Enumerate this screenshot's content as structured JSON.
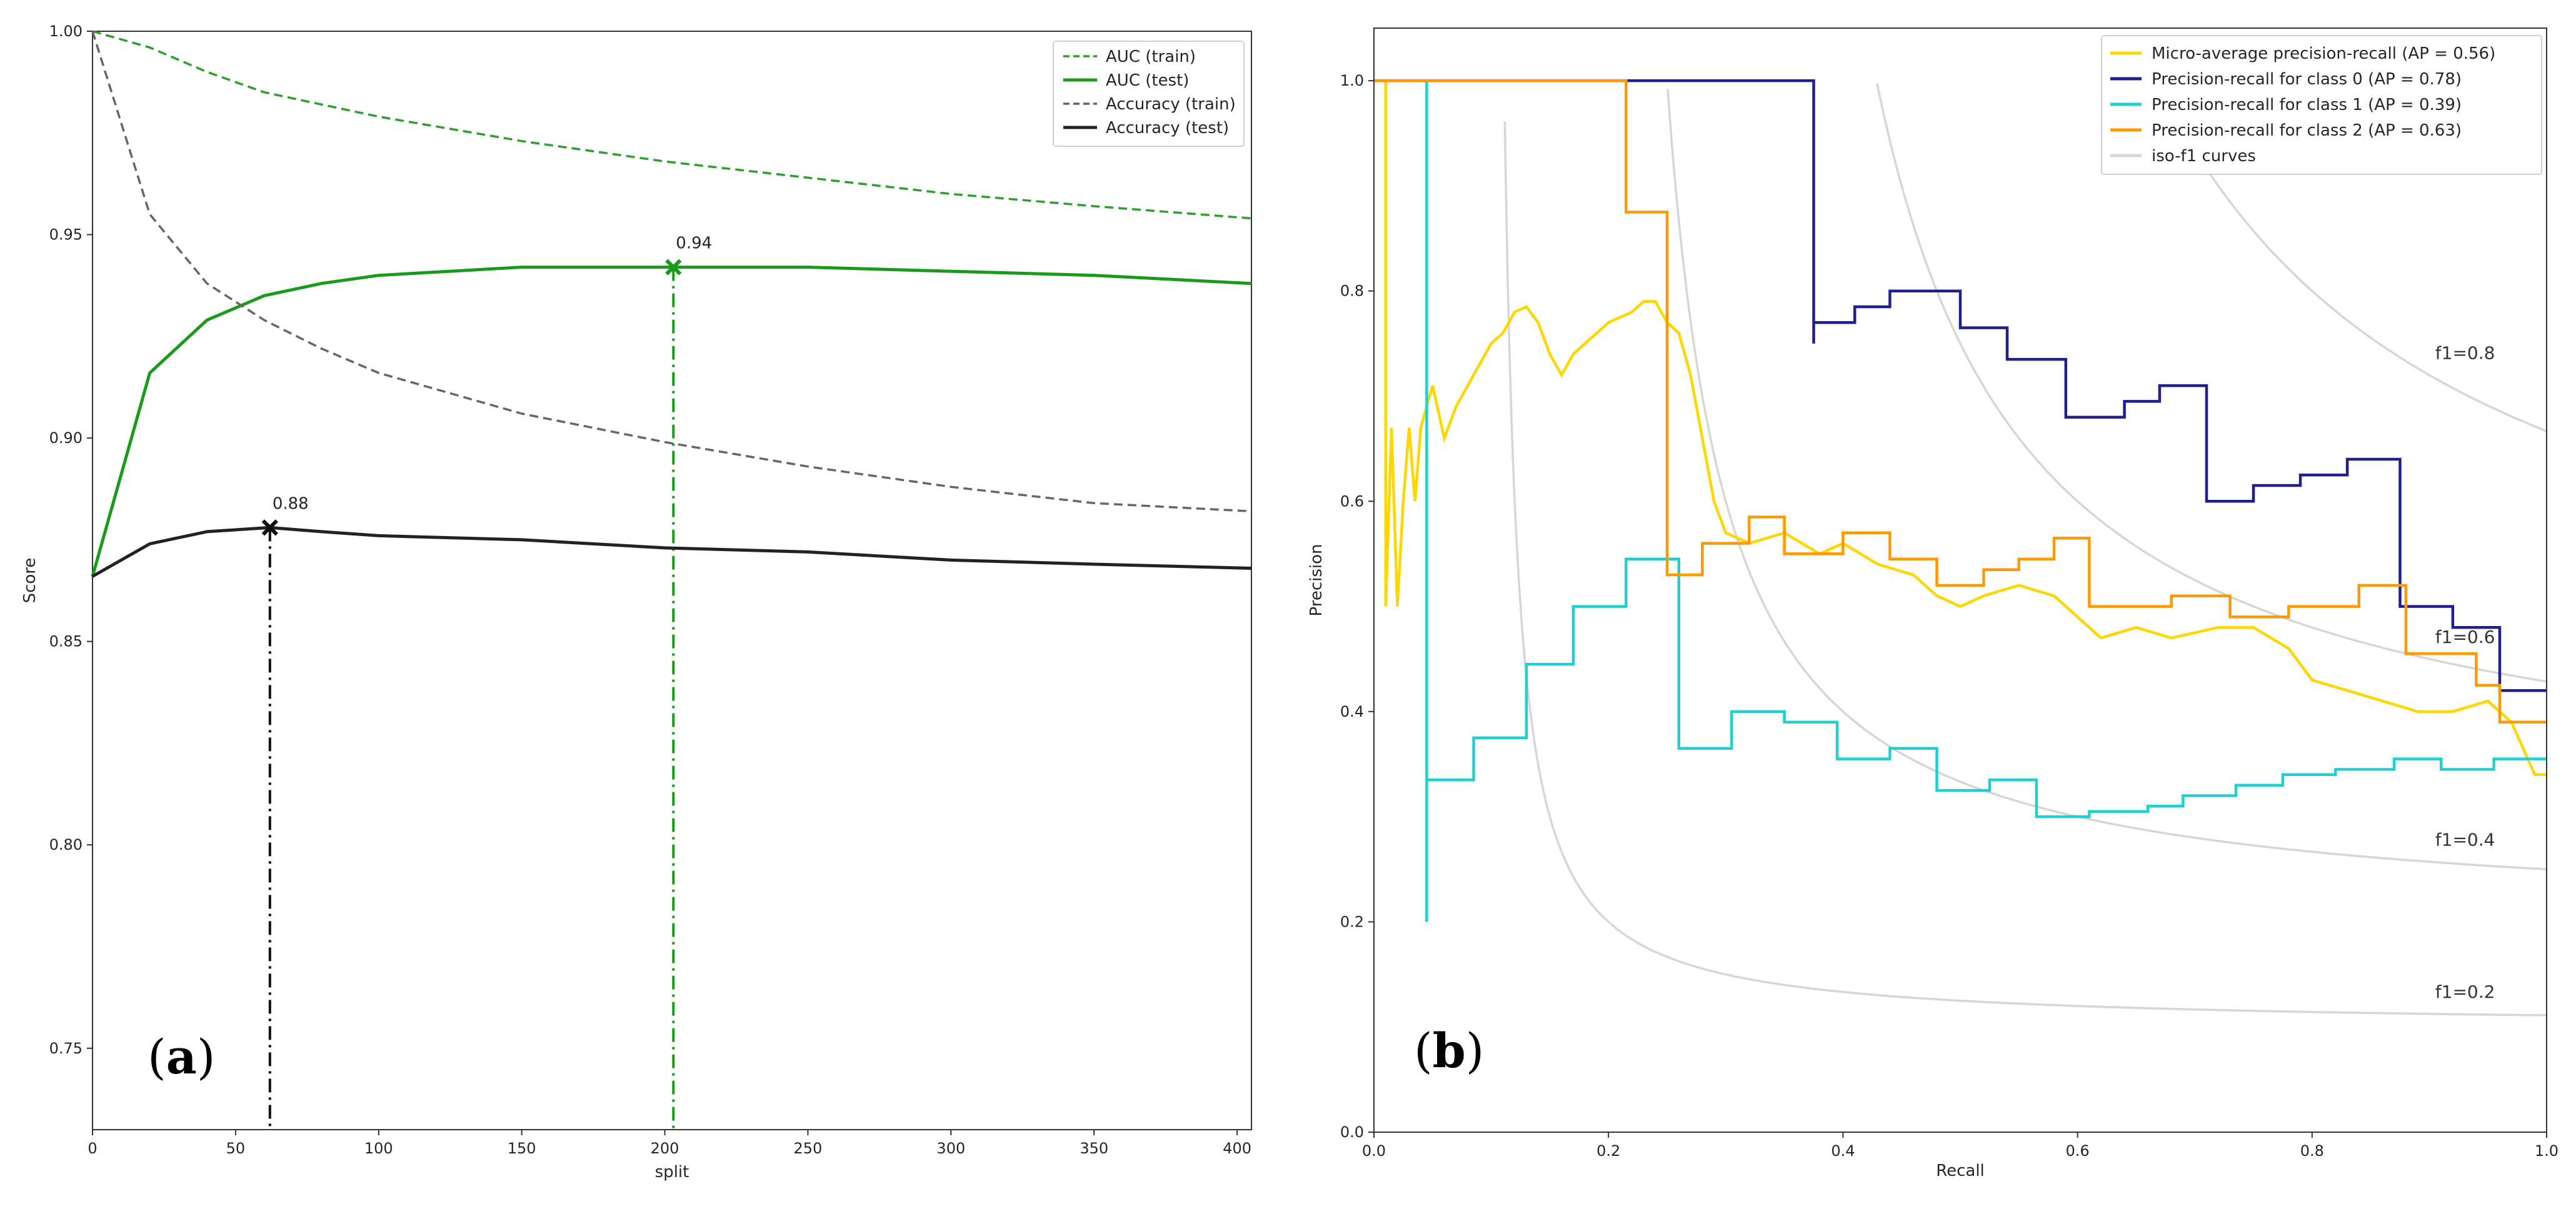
{
  "chart_data": [
    {
      "id": "a",
      "type": "line",
      "panel_label": "a",
      "xlabel": "split",
      "ylabel": "Score",
      "xlim": [
        0,
        405
      ],
      "ylim": [
        0.73,
        1.0
      ],
      "xticks": [
        0,
        50,
        100,
        150,
        200,
        250,
        300,
        350,
        400
      ],
      "yticks": [
        0.75,
        0.8,
        0.85,
        0.9,
        0.95,
        1.0
      ],
      "ytick_labels": [
        "0.75",
        "0.80",
        "0.85",
        "0.90",
        "0.95",
        "1.00"
      ],
      "legend_position": "upper right",
      "series": [
        {
          "name": "AUC (train)",
          "color": "#2ca02c",
          "style": "dashed",
          "points": [
            [
              0,
              1.0
            ],
            [
              20,
              0.996
            ],
            [
              40,
              0.99
            ],
            [
              60,
              0.985
            ],
            [
              80,
              0.982
            ],
            [
              100,
              0.979
            ],
            [
              150,
              0.973
            ],
            [
              200,
              0.968
            ],
            [
              250,
              0.964
            ],
            [
              300,
              0.96
            ],
            [
              350,
              0.957
            ],
            [
              405,
              0.954
            ]
          ]
        },
        {
          "name": "AUC (test)",
          "color": "#1a9a1a",
          "style": "solid",
          "points": [
            [
              0,
              0.866
            ],
            [
              20,
              0.916
            ],
            [
              40,
              0.929
            ],
            [
              50,
              0.932
            ],
            [
              60,
              0.935
            ],
            [
              80,
              0.938
            ],
            [
              100,
              0.94
            ],
            [
              150,
              0.942
            ],
            [
              203,
              0.942
            ],
            [
              250,
              0.942
            ],
            [
              300,
              0.941
            ],
            [
              350,
              0.94
            ],
            [
              405,
              0.938
            ]
          ]
        },
        {
          "name": "Accuracy (train)",
          "color": "#666666",
          "style": "dashed",
          "points": [
            [
              0,
              1.0
            ],
            [
              20,
              0.955
            ],
            [
              40,
              0.938
            ],
            [
              60,
              0.929
            ],
            [
              80,
              0.922
            ],
            [
              100,
              0.916
            ],
            [
              150,
              0.906
            ],
            [
              200,
              0.899
            ],
            [
              250,
              0.893
            ],
            [
              300,
              0.888
            ],
            [
              350,
              0.884
            ],
            [
              405,
              0.882
            ]
          ]
        },
        {
          "name": "Accuracy (test)",
          "color": "#222222",
          "style": "solid",
          "points": [
            [
              0,
              0.866
            ],
            [
              20,
              0.874
            ],
            [
              40,
              0.877
            ],
            [
              62,
              0.878
            ],
            [
              80,
              0.877
            ],
            [
              100,
              0.876
            ],
            [
              150,
              0.875
            ],
            [
              200,
              0.873
            ],
            [
              250,
              0.872
            ],
            [
              300,
              0.87
            ],
            [
              350,
              0.869
            ],
            [
              405,
              0.868
            ]
          ]
        }
      ],
      "markers": [
        {
          "x": 203,
          "y": 0.942,
          "label": "0.94",
          "color": "#1a9a1a"
        },
        {
          "x": 62,
          "y": 0.878,
          "label": "0.88",
          "color": "#111111"
        }
      ]
    },
    {
      "id": "b",
      "type": "line",
      "panel_label": "b",
      "xlabel": "Recall",
      "ylabel": "Precision",
      "xlim": [
        0.0,
        1.0
      ],
      "ylim": [
        0.0,
        1.05
      ],
      "xticks": [
        0.0,
        0.2,
        0.4,
        0.6,
        0.8,
        1.0
      ],
      "xtick_labels": [
        "0.0",
        "0.2",
        "0.4",
        "0.6",
        "0.8",
        "1.0"
      ],
      "yticks": [
        0.0,
        0.2,
        0.4,
        0.6,
        0.8,
        1.0
      ],
      "ytick_labels": [
        "0.0",
        "0.2",
        "0.4",
        "0.6",
        "0.8",
        "1.0"
      ],
      "legend_position": "upper right",
      "iso_f1": [
        {
          "f1": 0.2,
          "label": "f1=0.2"
        },
        {
          "f1": 0.4,
          "label": "f1=0.4"
        },
        {
          "f1": 0.6,
          "label": "f1=0.6"
        },
        {
          "f1": 0.8,
          "label": "f1=0.8"
        }
      ],
      "series": [
        {
          "name": "Micro-average precision-recall (AP = 0.56)",
          "color": "#ffd700",
          "points": [
            [
              0.01,
              1.0
            ],
            [
              0.01,
              0.5
            ],
            [
              0.015,
              0.67
            ],
            [
              0.02,
              0.5
            ],
            [
              0.025,
              0.6
            ],
            [
              0.03,
              0.67
            ],
            [
              0.035,
              0.6
            ],
            [
              0.04,
              0.67
            ],
            [
              0.05,
              0.71
            ],
            [
              0.06,
              0.66
            ],
            [
              0.07,
              0.69
            ],
            [
              0.08,
              0.71
            ],
            [
              0.09,
              0.73
            ],
            [
              0.1,
              0.75
            ],
            [
              0.11,
              0.76
            ],
            [
              0.12,
              0.78
            ],
            [
              0.13,
              0.785
            ],
            [
              0.14,
              0.77
            ],
            [
              0.15,
              0.74
            ],
            [
              0.16,
              0.72
            ],
            [
              0.17,
              0.74
            ],
            [
              0.18,
              0.75
            ],
            [
              0.19,
              0.76
            ],
            [
              0.2,
              0.77
            ],
            [
              0.21,
              0.775
            ],
            [
              0.22,
              0.78
            ],
            [
              0.23,
              0.79
            ],
            [
              0.24,
              0.79
            ],
            [
              0.25,
              0.77
            ],
            [
              0.26,
              0.76
            ],
            [
              0.27,
              0.72
            ],
            [
              0.28,
              0.66
            ],
            [
              0.29,
              0.6
            ],
            [
              0.3,
              0.57
            ],
            [
              0.32,
              0.56
            ],
            [
              0.35,
              0.57
            ],
            [
              0.38,
              0.55
            ],
            [
              0.4,
              0.56
            ],
            [
              0.43,
              0.54
            ],
            [
              0.46,
              0.53
            ],
            [
              0.48,
              0.51
            ],
            [
              0.5,
              0.5
            ],
            [
              0.52,
              0.51
            ],
            [
              0.55,
              0.52
            ],
            [
              0.58,
              0.51
            ],
            [
              0.6,
              0.49
            ],
            [
              0.62,
              0.47
            ],
            [
              0.65,
              0.48
            ],
            [
              0.68,
              0.47
            ],
            [
              0.72,
              0.48
            ],
            [
              0.75,
              0.48
            ],
            [
              0.78,
              0.46
            ],
            [
              0.8,
              0.43
            ],
            [
              0.83,
              0.42
            ],
            [
              0.86,
              0.41
            ],
            [
              0.89,
              0.4
            ],
            [
              0.92,
              0.4
            ],
            [
              0.95,
              0.41
            ],
            [
              0.97,
              0.39
            ],
            [
              0.99,
              0.34
            ],
            [
              1.0,
              0.34
            ]
          ]
        },
        {
          "name": "Precision-recall for class 0 (AP = 0.78)",
          "color": "#1f1f8f",
          "points": [
            [
              0.0,
              1.0
            ],
            [
              0.375,
              1.0
            ],
            [
              0.375,
              0.75
            ],
            [
              0.375,
              0.77
            ],
            [
              0.41,
              0.77
            ],
            [
              0.41,
              0.785
            ],
            [
              0.44,
              0.785
            ],
            [
              0.44,
              0.8
            ],
            [
              0.5,
              0.8
            ],
            [
              0.5,
              0.765
            ],
            [
              0.54,
              0.765
            ],
            [
              0.54,
              0.735
            ],
            [
              0.59,
              0.735
            ],
            [
              0.59,
              0.68
            ],
            [
              0.64,
              0.68
            ],
            [
              0.64,
              0.695
            ],
            [
              0.67,
              0.695
            ],
            [
              0.67,
              0.71
            ],
            [
              0.71,
              0.71
            ],
            [
              0.71,
              0.6
            ],
            [
              0.75,
              0.6
            ],
            [
              0.75,
              0.615
            ],
            [
              0.79,
              0.615
            ],
            [
              0.79,
              0.625
            ],
            [
              0.83,
              0.625
            ],
            [
              0.83,
              0.64
            ],
            [
              0.875,
              0.64
            ],
            [
              0.875,
              0.5
            ],
            [
              0.92,
              0.5
            ],
            [
              0.92,
              0.48
            ],
            [
              0.96,
              0.48
            ],
            [
              0.96,
              0.42
            ],
            [
              1.0,
              0.42
            ]
          ]
        },
        {
          "name": "Precision-recall for class 1 (AP = 0.39)",
          "color": "#20d0d0",
          "points": [
            [
              0.045,
              1.0
            ],
            [
              0.045,
              0.2
            ],
            [
              0.045,
              0.335
            ],
            [
              0.085,
              0.335
            ],
            [
              0.085,
              0.375
            ],
            [
              0.13,
              0.375
            ],
            [
              0.13,
              0.445
            ],
            [
              0.17,
              0.445
            ],
            [
              0.17,
              0.5
            ],
            [
              0.215,
              0.5
            ],
            [
              0.215,
              0.545
            ],
            [
              0.26,
              0.545
            ],
            [
              0.26,
              0.365
            ],
            [
              0.305,
              0.365
            ],
            [
              0.305,
              0.4
            ],
            [
              0.35,
              0.4
            ],
            [
              0.35,
              0.39
            ],
            [
              0.395,
              0.39
            ],
            [
              0.395,
              0.355
            ],
            [
              0.44,
              0.355
            ],
            [
              0.44,
              0.365
            ],
            [
              0.48,
              0.365
            ],
            [
              0.48,
              0.325
            ],
            [
              0.525,
              0.325
            ],
            [
              0.525,
              0.335
            ],
            [
              0.565,
              0.335
            ],
            [
              0.565,
              0.3
            ],
            [
              0.61,
              0.3
            ],
            [
              0.61,
              0.305
            ],
            [
              0.66,
              0.305
            ],
            [
              0.66,
              0.31
            ],
            [
              0.69,
              0.31
            ],
            [
              0.69,
              0.32
            ],
            [
              0.735,
              0.32
            ],
            [
              0.735,
              0.33
            ],
            [
              0.775,
              0.33
            ],
            [
              0.775,
              0.34
            ],
            [
              0.82,
              0.34
            ],
            [
              0.82,
              0.345
            ],
            [
              0.87,
              0.345
            ],
            [
              0.87,
              0.355
            ],
            [
              0.91,
              0.355
            ],
            [
              0.91,
              0.345
            ],
            [
              0.955,
              0.345
            ],
            [
              0.955,
              0.355
            ],
            [
              1.0,
              0.355
            ]
          ]
        },
        {
          "name": "Precision-recall for class 2 (AP = 0.63)",
          "color": "#ff9900",
          "points": [
            [
              0.0,
              1.0
            ],
            [
              0.215,
              1.0
            ],
            [
              0.215,
              0.875
            ],
            [
              0.25,
              0.875
            ],
            [
              0.25,
              0.53
            ],
            [
              0.28,
              0.53
            ],
            [
              0.28,
              0.56
            ],
            [
              0.32,
              0.56
            ],
            [
              0.32,
              0.585
            ],
            [
              0.35,
              0.585
            ],
            [
              0.35,
              0.55
            ],
            [
              0.4,
              0.55
            ],
            [
              0.4,
              0.57
            ],
            [
              0.44,
              0.57
            ],
            [
              0.44,
              0.545
            ],
            [
              0.48,
              0.545
            ],
            [
              0.48,
              0.52
            ],
            [
              0.52,
              0.52
            ],
            [
              0.52,
              0.535
            ],
            [
              0.55,
              0.535
            ],
            [
              0.55,
              0.545
            ],
            [
              0.58,
              0.545
            ],
            [
              0.58,
              0.565
            ],
            [
              0.61,
              0.565
            ],
            [
              0.61,
              0.5
            ],
            [
              0.68,
              0.5
            ],
            [
              0.68,
              0.51
            ],
            [
              0.73,
              0.51
            ],
            [
              0.73,
              0.49
            ],
            [
              0.78,
              0.49
            ],
            [
              0.78,
              0.5
            ],
            [
              0.84,
              0.5
            ],
            [
              0.84,
              0.52
            ],
            [
              0.88,
              0.52
            ],
            [
              0.88,
              0.455
            ],
            [
              0.94,
              0.455
            ],
            [
              0.94,
              0.425
            ],
            [
              0.96,
              0.425
            ],
            [
              0.96,
              0.39
            ],
            [
              1.0,
              0.39
            ]
          ]
        }
      ],
      "iso_legend_label": "iso-f1 curves"
    }
  ]
}
